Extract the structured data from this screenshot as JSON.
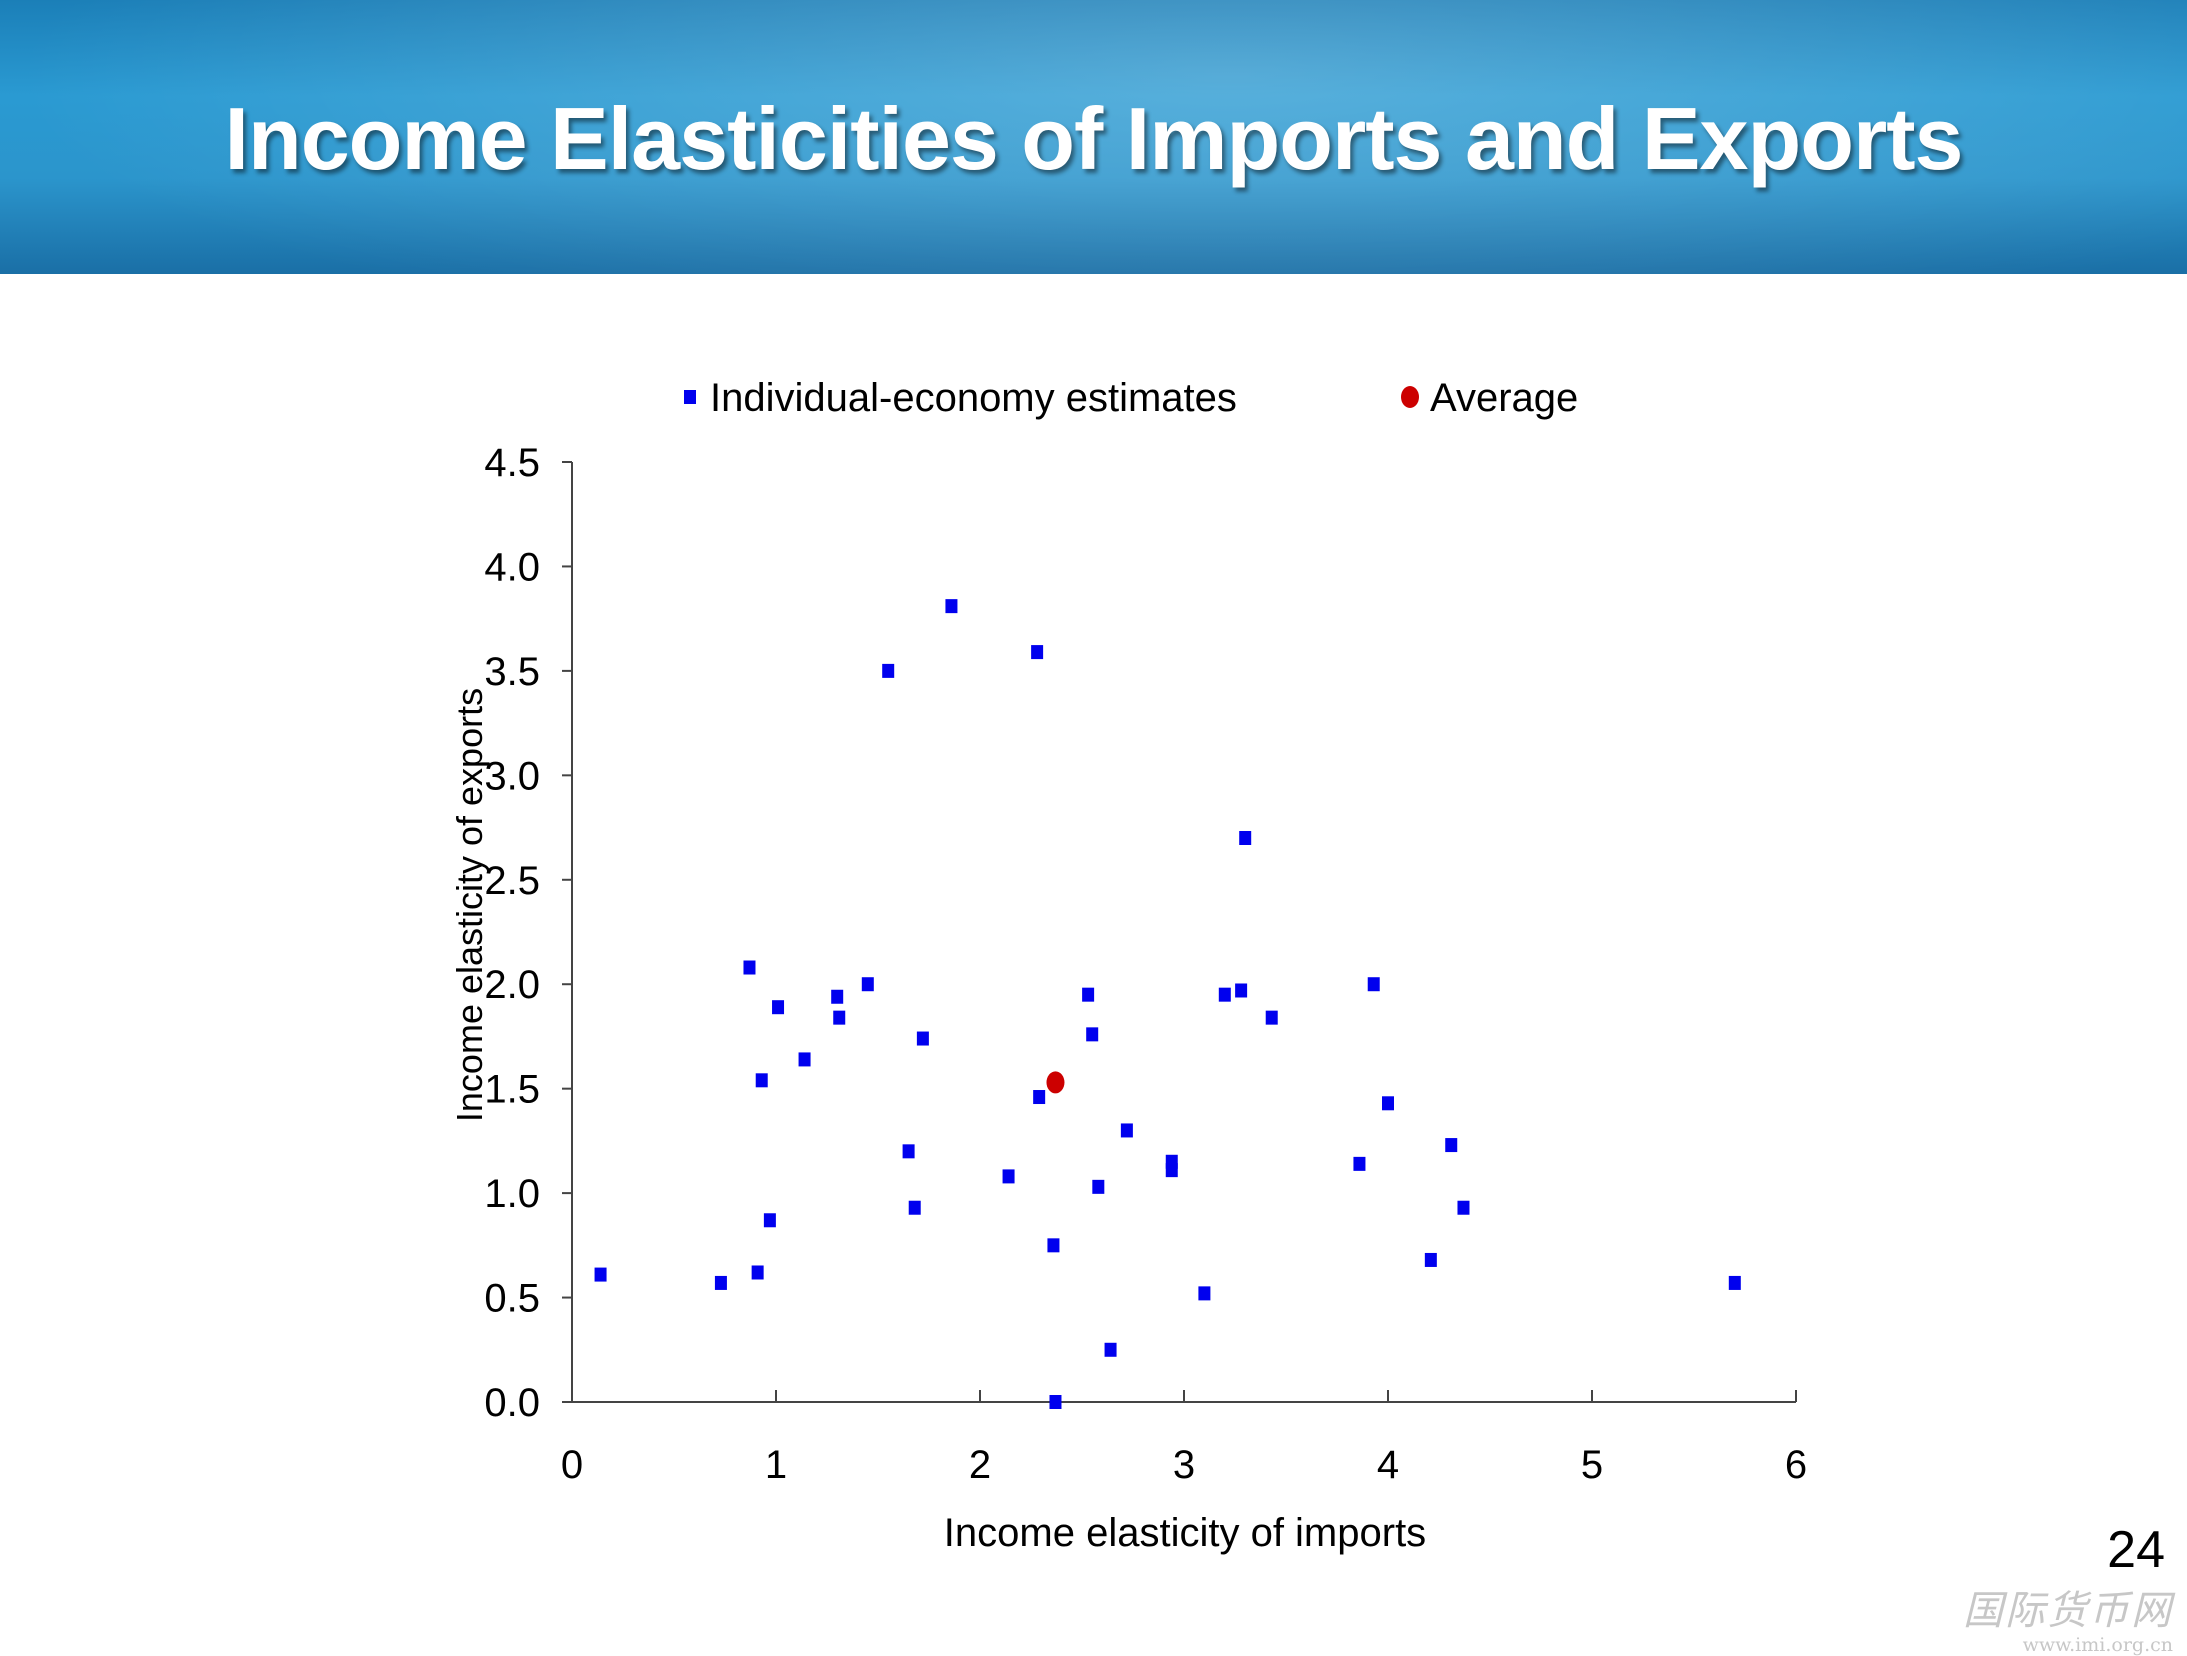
{
  "slide": {
    "title": "Income Elasticities of Imports and Exports",
    "page_number": "24",
    "watermark": {
      "logo_text": "国际货币网",
      "url": "www.imi.org.cn"
    },
    "banner_color": "#2a92cc"
  },
  "chart_data": {
    "type": "scatter",
    "xlabel": "Income elasticity of imports",
    "ylabel": "Income elasticity of exports",
    "xlim": [
      0,
      6
    ],
    "ylim": [
      0,
      4.5
    ],
    "xticks": [
      0,
      1,
      2,
      3,
      4,
      5,
      6
    ],
    "xtick_labels": [
      "0",
      "1",
      "2",
      "3",
      "4",
      "5",
      "6"
    ],
    "yticks": [
      0,
      0.5,
      1,
      1.5,
      2,
      2.5,
      3,
      3.5,
      4,
      4.5
    ],
    "ytick_labels": [
      "0.0",
      "0.5",
      "1.0",
      "1.5",
      "2.0",
      "2.5",
      "3.0",
      "3.5",
      "4.0",
      "4.5"
    ],
    "grid": false,
    "legend_position": "top",
    "series": [
      {
        "name": "Individual-economy estimates",
        "marker": "square",
        "color": "#0000ee",
        "points": [
          [
            0.14,
            0.61
          ],
          [
            0.73,
            0.57
          ],
          [
            0.87,
            2.08
          ],
          [
            0.91,
            0.62
          ],
          [
            0.93,
            1.54
          ],
          [
            0.97,
            0.87
          ],
          [
            1.01,
            1.89
          ],
          [
            1.14,
            1.64
          ],
          [
            1.3,
            1.94
          ],
          [
            1.31,
            1.84
          ],
          [
            1.45,
            2.0
          ],
          [
            1.55,
            3.5
          ],
          [
            1.65,
            1.2
          ],
          [
            1.68,
            0.93
          ],
          [
            1.72,
            1.74
          ],
          [
            1.86,
            3.81
          ],
          [
            2.14,
            1.08
          ],
          [
            2.28,
            3.59
          ],
          [
            2.29,
            1.46
          ],
          [
            2.36,
            0.75
          ],
          [
            2.37,
            0.0
          ],
          [
            2.53,
            1.95
          ],
          [
            2.55,
            1.76
          ],
          [
            2.58,
            1.03
          ],
          [
            2.64,
            0.25
          ],
          [
            2.72,
            1.3
          ],
          [
            2.94,
            1.15
          ],
          [
            2.94,
            1.11
          ],
          [
            3.1,
            0.52
          ],
          [
            3.2,
            1.95
          ],
          [
            3.28,
            1.97
          ],
          [
            3.3,
            2.7
          ],
          [
            3.43,
            1.84
          ],
          [
            3.86,
            1.14
          ],
          [
            3.93,
            2.0
          ],
          [
            4.0,
            1.43
          ],
          [
            4.21,
            0.68
          ],
          [
            4.31,
            1.23
          ],
          [
            4.37,
            0.93
          ],
          [
            5.7,
            0.57
          ]
        ]
      },
      {
        "name": "Average",
        "marker": "circle",
        "color": "#cc0000",
        "points": [
          [
            2.37,
            1.53
          ]
        ]
      }
    ]
  }
}
